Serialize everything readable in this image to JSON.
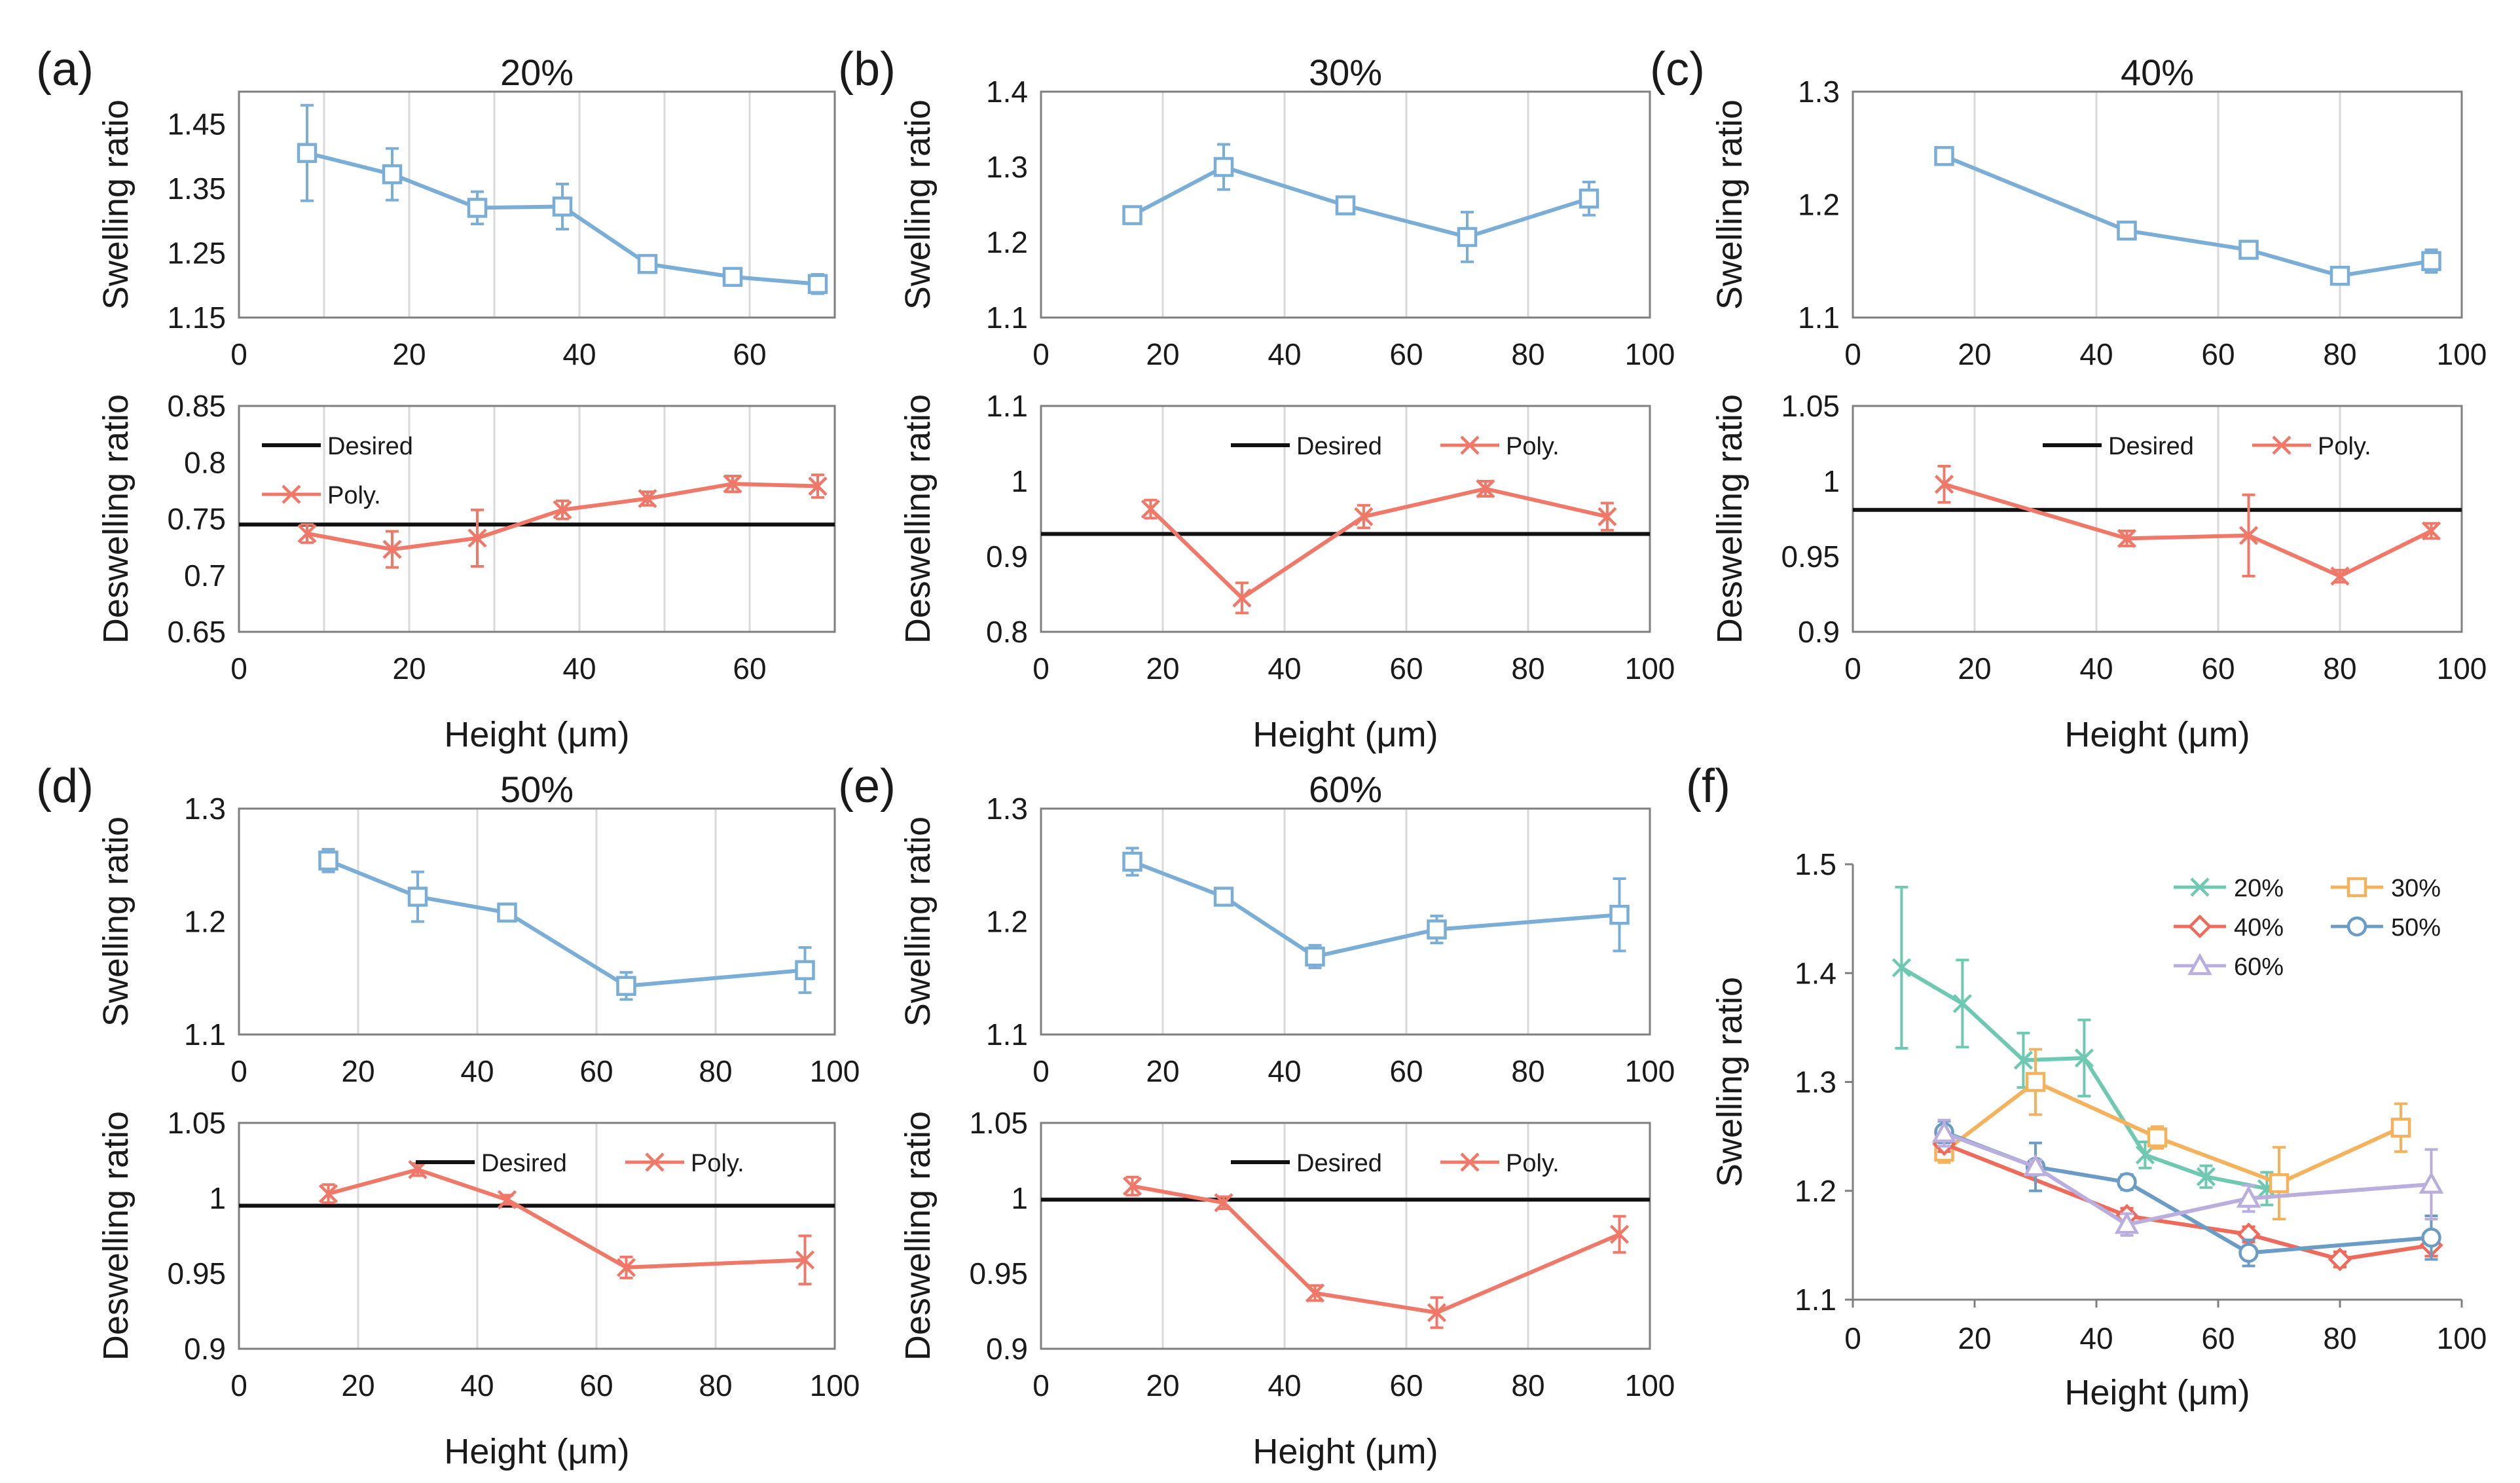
{
  "colors": {
    "swelling": "#7aaed6",
    "deswelling": "#f07868",
    "desired": "#111111",
    "grid": "#d9d9d9",
    "axis": "#7f7f7f"
  },
  "labels": {
    "swelling_ratio": "Swelling ratio",
    "deswelling_ratio": "Deswelling ratio",
    "height": "Height (μm)",
    "desired": "Desired",
    "poly": "Poly."
  },
  "chart_data": [
    {
      "panel": "(a)",
      "title": "20%",
      "type": "line",
      "swelling": {
        "ylabel": "Swelling ratio",
        "x": [
          8,
          18,
          28,
          38,
          48,
          58,
          68
        ],
        "y": [
          1.405,
          1.372,
          1.32,
          1.322,
          1.233,
          1.213,
          1.202
        ],
        "err": [
          0.074,
          0.04,
          0.025,
          0.035,
          0.012,
          0.01,
          0.015
        ],
        "ylim": [
          1.15,
          1.5
        ],
        "yticks": [
          1.15,
          1.25,
          1.35,
          1.45
        ],
        "ytick_labels": [
          "1.15",
          "1.25",
          "1.35",
          "1.45"
        ],
        "xlim": [
          0,
          70
        ],
        "xticks": [
          0,
          20,
          40,
          60
        ],
        "xtick_labels": [
          "0",
          "20",
          "40",
          "60"
        ],
        "grid_x": [
          10,
          20,
          30,
          40,
          50,
          60,
          70
        ]
      },
      "deswelling": {
        "ylabel": "Deswelling ratio",
        "xlabel": "Height (μm)",
        "desired": 0.745,
        "legend_layout": "stacked",
        "x": [
          8,
          18,
          28,
          38,
          48,
          58,
          68
        ],
        "y": [
          0.737,
          0.723,
          0.733,
          0.758,
          0.768,
          0.781,
          0.779
        ],
        "err": [
          0.008,
          0.016,
          0.025,
          0.008,
          0.006,
          0.007,
          0.01
        ],
        "ylim": [
          0.65,
          0.85
        ],
        "yticks": [
          0.65,
          0.7,
          0.75,
          0.8,
          0.85
        ],
        "ytick_labels": [
          "0.65",
          "0.7",
          "0.75",
          "0.8",
          "0.85"
        ],
        "xlim": [
          0,
          70
        ],
        "xticks": [
          0,
          20,
          40,
          60
        ],
        "xtick_labels": [
          "0",
          "20",
          "40",
          "60"
        ],
        "grid_x": [
          10,
          20,
          30,
          40,
          50,
          60,
          70
        ]
      }
    },
    {
      "panel": "(b)",
      "title": "30%",
      "type": "line",
      "swelling": {
        "ylabel": "Swelling ratio",
        "x": [
          15,
          30,
          50,
          70,
          90
        ],
        "y": [
          1.236,
          1.3,
          1.249,
          1.207,
          1.258
        ],
        "err": [
          0.01,
          0.03,
          0.01,
          0.033,
          0.022
        ],
        "ylim": [
          1.1,
          1.4
        ],
        "yticks": [
          1.1,
          1.2,
          1.3,
          1.4
        ],
        "ytick_labels": [
          "1.1",
          "1.2",
          "1.3",
          "1.4"
        ],
        "xlim": [
          0,
          100
        ],
        "xticks": [
          0,
          20,
          40,
          60,
          80,
          100
        ],
        "xtick_labels": [
          "0",
          "20",
          "40",
          "60",
          "80",
          "100"
        ],
        "grid_x": [
          20,
          40,
          60,
          80,
          100
        ]
      },
      "deswelling": {
        "ylabel": "Deswelling ratio",
        "xlabel": "Height (μm)",
        "desired": 0.93,
        "legend_layout": "inline",
        "x": [
          18,
          33,
          53,
          73,
          93
        ],
        "y": [
          0.963,
          0.845,
          0.953,
          0.99,
          0.953
        ],
        "err": [
          0.012,
          0.02,
          0.015,
          0.01,
          0.018
        ],
        "ylim": [
          0.8,
          1.1
        ],
        "yticks": [
          0.8,
          0.9,
          1.0,
          1.1
        ],
        "ytick_labels": [
          "0.8",
          "0.9",
          "1",
          "1.1"
        ],
        "xlim": [
          0,
          100
        ],
        "xticks": [
          0,
          20,
          40,
          60,
          80,
          100
        ],
        "xtick_labels": [
          "0",
          "20",
          "40",
          "60",
          "80",
          "100"
        ],
        "grid_x": [
          20,
          40,
          60,
          80,
          100
        ]
      }
    },
    {
      "panel": "(c)",
      "title": "40%",
      "type": "line",
      "swelling": {
        "ylabel": "Swelling ratio",
        "x": [
          15,
          45,
          65,
          80,
          95
        ],
        "y": [
          1.243,
          1.177,
          1.16,
          1.137,
          1.15
        ],
        "err": [
          0.007,
          0.007,
          0.007,
          0.007,
          0.01
        ],
        "ylim": [
          1.1,
          1.3
        ],
        "yticks": [
          1.1,
          1.2,
          1.3
        ],
        "ytick_labels": [
          "1.1",
          "1.2",
          "1.3"
        ],
        "xlim": [
          0,
          100
        ],
        "xticks": [
          0,
          20,
          40,
          60,
          80,
          100
        ],
        "xtick_labels": [
          "0",
          "20",
          "40",
          "60",
          "80",
          "100"
        ],
        "grid_x": [
          20,
          40,
          60,
          80,
          100
        ]
      },
      "deswelling": {
        "ylabel": "Deswelling ratio",
        "xlabel": "Height (μm)",
        "desired": 0.981,
        "legend_layout": "inline",
        "x": [
          15,
          45,
          65,
          80,
          95
        ],
        "y": [
          0.998,
          0.962,
          0.964,
          0.937,
          0.967
        ],
        "err": [
          0.012,
          0.005,
          0.027,
          0.004,
          0.005
        ],
        "ylim": [
          0.9,
          1.05
        ],
        "yticks": [
          0.9,
          0.95,
          1.0,
          1.05
        ],
        "ytick_labels": [
          "0.9",
          "0.95",
          "1",
          "1.05"
        ],
        "xlim": [
          0,
          100
        ],
        "xticks": [
          0,
          20,
          40,
          60,
          80,
          100
        ],
        "xtick_labels": [
          "0",
          "20",
          "40",
          "60",
          "80",
          "100"
        ],
        "grid_x": [
          20,
          40,
          60,
          80,
          100
        ]
      }
    },
    {
      "panel": "(d)",
      "title": "50%",
      "type": "line",
      "swelling": {
        "ylabel": "Swelling ratio",
        "x": [
          15,
          30,
          45,
          65,
          95
        ],
        "y": [
          1.254,
          1.222,
          1.208,
          1.143,
          1.157
        ],
        "err": [
          0.01,
          0.022,
          0.007,
          0.012,
          0.02
        ],
        "ylim": [
          1.1,
          1.3
        ],
        "yticks": [
          1.1,
          1.2,
          1.3
        ],
        "ytick_labels": [
          "1.1",
          "1.2",
          "1.3"
        ],
        "xlim": [
          0,
          100
        ],
        "xticks": [
          0,
          20,
          40,
          60,
          80,
          100
        ],
        "xtick_labels": [
          "0",
          "20",
          "40",
          "60",
          "80",
          "100"
        ],
        "grid_x": [
          20,
          40,
          60,
          80,
          100
        ]
      },
      "deswelling": {
        "ylabel": "Deswelling ratio",
        "xlabel": "Height (μm)",
        "desired": 0.995,
        "legend_layout": "inline",
        "x": [
          15,
          30,
          45,
          65,
          95
        ],
        "y": [
          1.003,
          1.019,
          0.999,
          0.954,
          0.959
        ],
        "err": [
          0.006,
          0.004,
          0.003,
          0.007,
          0.016
        ],
        "ylim": [
          0.9,
          1.05
        ],
        "yticks": [
          0.9,
          0.95,
          1.0,
          1.05
        ],
        "ytick_labels": [
          "0.9",
          "0.95",
          "1",
          "1.05"
        ],
        "xlim": [
          0,
          100
        ],
        "xticks": [
          0,
          20,
          40,
          60,
          80,
          100
        ],
        "xtick_labels": [
          "0",
          "20",
          "40",
          "60",
          "80",
          "100"
        ],
        "grid_x": [
          20,
          40,
          60,
          80,
          100
        ]
      }
    },
    {
      "panel": "(e)",
      "title": "60%",
      "type": "line",
      "swelling": {
        "ylabel": "Swelling ratio",
        "x": [
          15,
          30,
          45,
          65,
          95
        ],
        "y": [
          1.253,
          1.222,
          1.169,
          1.193,
          1.206
        ],
        "err": [
          0.012,
          0.006,
          0.01,
          0.012,
          0.032
        ],
        "ylim": [
          1.1,
          1.3
        ],
        "yticks": [
          1.1,
          1.2,
          1.3
        ],
        "ytick_labels": [
          "1.1",
          "1.2",
          "1.3"
        ],
        "xlim": [
          0,
          100
        ],
        "xticks": [
          0,
          20,
          40,
          60,
          80,
          100
        ],
        "xtick_labels": [
          "0",
          "20",
          "40",
          "60",
          "80",
          "100"
        ],
        "grid_x": [
          20,
          40,
          60,
          80,
          100
        ]
      },
      "deswelling": {
        "ylabel": "Deswelling ratio",
        "xlabel": "Height (μm)",
        "desired": 0.999,
        "legend_layout": "inline",
        "x": [
          15,
          30,
          45,
          65,
          95
        ],
        "y": [
          1.008,
          0.997,
          0.937,
          0.924,
          0.976
        ],
        "err": [
          0.006,
          0.004,
          0.005,
          0.01,
          0.012
        ],
        "ylim": [
          0.9,
          1.05
        ],
        "yticks": [
          0.9,
          0.95,
          1.0,
          1.05
        ],
        "ytick_labels": [
          "0.9",
          "0.95",
          "1",
          "1.05"
        ],
        "xlim": [
          0,
          100
        ],
        "xticks": [
          0,
          20,
          40,
          60,
          80,
          100
        ],
        "xtick_labels": [
          "0",
          "20",
          "40",
          "60",
          "80",
          "100"
        ],
        "grid_x": [
          20,
          40,
          60,
          80,
          100
        ]
      }
    },
    {
      "panel": "(f)",
      "type": "line",
      "ylabel": "Swelling ratio",
      "xlabel": "Height (μm)",
      "ylim": [
        1.1,
        1.5
      ],
      "yticks": [
        1.1,
        1.2,
        1.3,
        1.4,
        1.5
      ],
      "ytick_labels": [
        "1.1",
        "1.2",
        "1.3",
        "1.4",
        "1.5"
      ],
      "xlim": [
        0,
        100
      ],
      "xticks": [
        0,
        20,
        40,
        60,
        80,
        100
      ],
      "xtick_labels": [
        "0",
        "20",
        "40",
        "60",
        "80",
        "100"
      ],
      "legend_position": "top-right",
      "series": [
        {
          "name": "20%",
          "color": "#6fc9b2",
          "marker": "x",
          "x": [
            8,
            18,
            28,
            38,
            48,
            58,
            68
          ],
          "y": [
            1.405,
            1.372,
            1.32,
            1.322,
            1.233,
            1.213,
            1.202
          ],
          "err": [
            0.074,
            0.04,
            0.025,
            0.035,
            0.012,
            0.01,
            0.015
          ]
        },
        {
          "name": "30%",
          "color": "#f5b25c",
          "marker": "square",
          "x": [
            15,
            30,
            50,
            70,
            90
          ],
          "y": [
            1.236,
            1.3,
            1.249,
            1.207,
            1.258
          ],
          "err": [
            0.01,
            0.03,
            0.01,
            0.033,
            0.022
          ]
        },
        {
          "name": "40%",
          "color": "#ee6a5b",
          "marker": "diamond",
          "x": [
            15,
            45,
            65,
            80,
            95
          ],
          "y": [
            1.243,
            1.177,
            1.16,
            1.137,
            1.15
          ],
          "err": [
            0.007,
            0.007,
            0.007,
            0.007,
            0.01
          ]
        },
        {
          "name": "50%",
          "color": "#6a9cc6",
          "marker": "circle",
          "x": [
            15,
            30,
            45,
            65,
            95
          ],
          "y": [
            1.254,
            1.222,
            1.208,
            1.143,
            1.157
          ],
          "err": [
            0.01,
            0.022,
            0.007,
            0.012,
            0.02
          ]
        },
        {
          "name": "60%",
          "color": "#b9aedd",
          "marker": "triangle",
          "x": [
            15,
            30,
            45,
            65,
            95
          ],
          "y": [
            1.253,
            1.222,
            1.169,
            1.193,
            1.206
          ],
          "err": [
            0.012,
            0.006,
            0.01,
            0.012,
            0.032
          ]
        }
      ]
    }
  ]
}
